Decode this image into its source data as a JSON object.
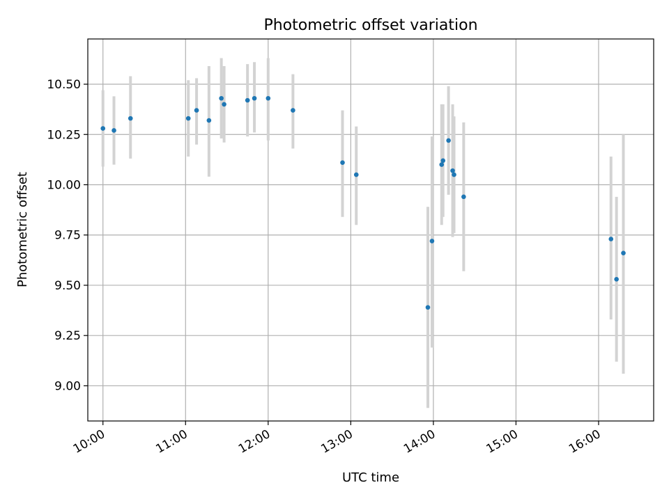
{
  "chart_data": {
    "type": "scatter",
    "title": "Photometric offset variation",
    "xlabel": "UTC time",
    "ylabel": "Photometric offset",
    "grid": true,
    "xlim": [
      "09:49",
      "16:40"
    ],
    "ylim": [
      8.825,
      10.725
    ],
    "x_ticks": [
      "10:00",
      "11:00",
      "12:00",
      "13:00",
      "14:00",
      "15:00",
      "16:00"
    ],
    "y_ticks": [
      "9.00",
      "9.25",
      "9.50",
      "9.75",
      "10.00",
      "10.25",
      "10.50"
    ],
    "points": [
      {
        "time": "10:00",
        "y": 10.28,
        "low": 10.09,
        "high": 10.47
      },
      {
        "time": "10:08",
        "y": 10.27,
        "low": 10.1,
        "high": 10.44
      },
      {
        "time": "10:20",
        "y": 10.33,
        "low": 10.13,
        "high": 10.54
      },
      {
        "time": "11:02",
        "y": 10.33,
        "low": 10.14,
        "high": 10.52
      },
      {
        "time": "11:08",
        "y": 10.37,
        "low": 10.2,
        "high": 10.53
      },
      {
        "time": "11:17",
        "y": 10.32,
        "low": 10.04,
        "high": 10.59
      },
      {
        "time": "11:26",
        "y": 10.43,
        "low": 10.23,
        "high": 10.63
      },
      {
        "time": "11:28",
        "y": 10.4,
        "low": 10.21,
        "high": 10.59
      },
      {
        "time": "11:45",
        "y": 10.42,
        "low": 10.24,
        "high": 10.6
      },
      {
        "time": "11:50",
        "y": 10.43,
        "low": 10.26,
        "high": 10.61
      },
      {
        "time": "12:00",
        "y": 10.43,
        "low": 10.22,
        "high": 10.63
      },
      {
        "time": "12:18",
        "y": 10.37,
        "low": 10.18,
        "high": 10.55
      },
      {
        "time": "12:54",
        "y": 10.11,
        "low": 9.84,
        "high": 10.37
      },
      {
        "time": "13:04",
        "y": 10.05,
        "low": 9.8,
        "high": 10.29
      },
      {
        "time": "13:56",
        "y": 9.39,
        "low": 8.89,
        "high": 9.89
      },
      {
        "time": "13:59",
        "y": 9.72,
        "low": 9.19,
        "high": 10.24
      },
      {
        "time": "14:06",
        "y": 10.1,
        "low": 9.8,
        "high": 10.4
      },
      {
        "time": "14:07",
        "y": 10.12,
        "low": 9.84,
        "high": 10.4
      },
      {
        "time": "14:11",
        "y": 10.22,
        "low": 9.95,
        "high": 10.49
      },
      {
        "time": "14:14",
        "y": 10.07,
        "low": 9.74,
        "high": 10.4
      },
      {
        "time": "14:15",
        "y": 10.05,
        "low": 9.76,
        "high": 10.34
      },
      {
        "time": "14:22",
        "y": 9.94,
        "low": 9.57,
        "high": 10.31
      },
      {
        "time": "16:09",
        "y": 9.73,
        "low": 9.33,
        "high": 10.14
      },
      {
        "time": "16:13",
        "y": 9.53,
        "low": 9.12,
        "high": 9.94
      },
      {
        "time": "16:18",
        "y": 9.66,
        "low": 9.06,
        "high": 10.25
      }
    ]
  }
}
